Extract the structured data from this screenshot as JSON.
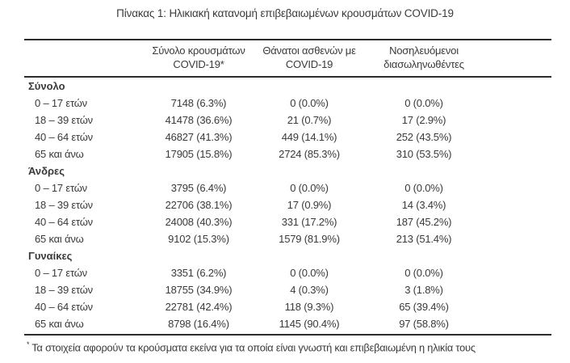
{
  "title": "Πίνακας 1: Ηλικιακή κατανομή επιβεβαιωμένων κρουσμάτων COVID-19",
  "colors": {
    "text": "#3a3a3a",
    "rule": "#2d2d2d",
    "background": "#ffffff"
  },
  "table": {
    "col_headers": [
      {
        "line1": "Σύνολο κρουσμάτων",
        "line2": "COVID-19*"
      },
      {
        "line1": "Θάνατοι ασθενών με",
        "line2": "COVID-19"
      },
      {
        "line1": "Νοσηλευόμενοι",
        "line2": "διασωληνωθέντες"
      }
    ],
    "sections": [
      {
        "label": "Σύνολο",
        "rows": [
          {
            "age": "0 – 17 ετών",
            "cases": "7148 (6.3%)",
            "deaths": "0 (0.0%)",
            "intubated": "0 (0.0%)"
          },
          {
            "age": "18 – 39 ετών",
            "cases": "41478 (36.6%)",
            "deaths": "21 (0.7%)",
            "intubated": "17 (2.9%)"
          },
          {
            "age": "40 – 64 ετών",
            "cases": "46827 (41.3%)",
            "deaths": "449 (14.1%)",
            "intubated": "252 (43.5%)"
          },
          {
            "age": "65 και άνω",
            "cases": "17905 (15.8%)",
            "deaths": "2724 (85.3%)",
            "intubated": "310 (53.5%)"
          }
        ]
      },
      {
        "label": "Άνδρες",
        "rows": [
          {
            "age": "0 – 17 ετών",
            "cases": "3795 (6.4%)",
            "deaths": "0 (0.0%)",
            "intubated": "0 (0.0%)"
          },
          {
            "age": "18 – 39 ετών",
            "cases": "22706 (38.1%)",
            "deaths": "17 (0.9%)",
            "intubated": "14 (3.4%)"
          },
          {
            "age": "40 – 64 ετών",
            "cases": "24008 (40.3%)",
            "deaths": "331 (17.2%)",
            "intubated": "187 (45.2%)"
          },
          {
            "age": "65 και άνω",
            "cases": "9102 (15.3%)",
            "deaths": "1579 (81.9%)",
            "intubated": "213 (51.4%)"
          }
        ]
      },
      {
        "label": "Γυναίκες",
        "rows": [
          {
            "age": "0 – 17 ετών",
            "cases": "3351 (6.2%)",
            "deaths": "0 (0.0%)",
            "intubated": "0 (0.0%)"
          },
          {
            "age": "18 – 39 ετών",
            "cases": "18755 (34.9%)",
            "deaths": "4 (0.3%)",
            "intubated": "3 (1.8%)"
          },
          {
            "age": "40 – 64 ετών",
            "cases": "22781 (42.4%)",
            "deaths": "118 (9.3%)",
            "intubated": "65 (39.4%)"
          },
          {
            "age": "65 και άνω",
            "cases": "8798 (16.4%)",
            "deaths": "1145 (90.4%)",
            "intubated": "97 (58.8%)"
          }
        ]
      }
    ]
  },
  "footnote": {
    "marker": "*",
    "text": "Τα στοιχεία αφορούν τα κρούσματα εκείνα για τα οποία είναι γνωστή και επιβεβαιωμένη η ηλικία τους"
  }
}
